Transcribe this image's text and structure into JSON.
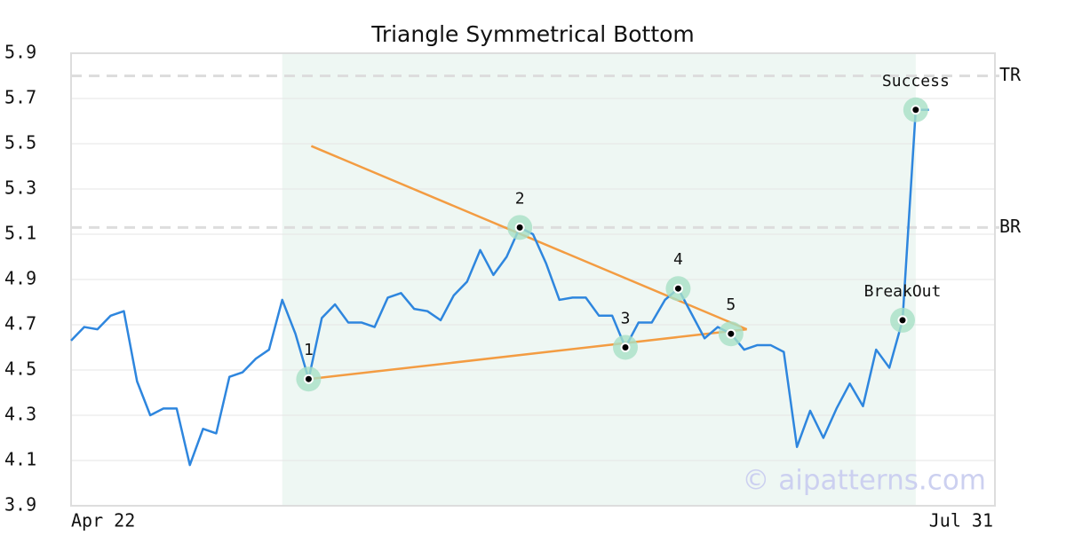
{
  "chart_data": {
    "type": "line",
    "title": "Triangle Symmetrical Bottom",
    "categories": [
      "Apr 22",
      null,
      null,
      null,
      null,
      null,
      null,
      null,
      null,
      null,
      null,
      null,
      null,
      null,
      null,
      null,
      null,
      null,
      null,
      null,
      null,
      null,
      null,
      null,
      null,
      null,
      null,
      null,
      null,
      null,
      null,
      null,
      null,
      null,
      null,
      null,
      null,
      null,
      null,
      null,
      null,
      null,
      null,
      null,
      null,
      null,
      null,
      null,
      null,
      null,
      null,
      null,
      null,
      null,
      null,
      null,
      null,
      null,
      null,
      null,
      null,
      null,
      null,
      null,
      null,
      null,
      null,
      null,
      null,
      null,
      "Jul 31"
    ],
    "series": [
      {
        "color": "#2e86de",
        "values": [
          4.63,
          4.69,
          4.68,
          4.74,
          4.76,
          4.45,
          4.3,
          4.33,
          4.33,
          4.08,
          4.24,
          4.22,
          4.47,
          4.49,
          4.55,
          4.59,
          4.81,
          4.66,
          4.46,
          4.73,
          4.79,
          4.71,
          4.71,
          4.69,
          4.82,
          4.84,
          4.77,
          4.76,
          4.72,
          4.83,
          4.89,
          5.03,
          4.92,
          5.0,
          5.13,
          5.1,
          4.97,
          4.81,
          4.82,
          4.82,
          4.74,
          4.74,
          4.6,
          4.71,
          4.71,
          4.81,
          4.86,
          4.75,
          4.64,
          4.69,
          4.66,
          4.59,
          4.61,
          4.61,
          4.58,
          4.16,
          4.32,
          4.2,
          4.33,
          4.44,
          4.34,
          4.59,
          4.51,
          4.72,
          5.65,
          5.65,
          null,
          null,
          null,
          null,
          null
        ]
      }
    ],
    "ylim": [
      3.9,
      5.9
    ],
    "yticks": [
      3.9,
      4.1,
      4.3,
      4.5,
      4.7,
      4.9,
      5.1,
      5.3,
      5.5,
      5.7,
      5.9
    ],
    "grid": true,
    "points": [
      {
        "label": "1",
        "index": 18
      },
      {
        "label": "2",
        "index": 34
      },
      {
        "label": "3",
        "index": 42
      },
      {
        "label": "4",
        "index": 46
      },
      {
        "label": "5",
        "index": 50
      },
      {
        "label": "BreakOut",
        "index": 63
      },
      {
        "label": "Success",
        "index": 64
      }
    ],
    "trendlines": [
      {
        "color": "#f39c42",
        "x": [
          18.2,
          51.2
        ],
        "y": [
          5.49,
          4.68
        ]
      },
      {
        "color": "#f39c42",
        "x": [
          18,
          51.2
        ],
        "y": [
          4.46,
          4.68
        ]
      }
    ],
    "hlines": [
      {
        "label": "TR",
        "value": 5.8
      },
      {
        "label": "BR",
        "value": 5.13
      }
    ],
    "shade": {
      "from": 16,
      "to": 64,
      "color": "#eef7f3"
    },
    "watermark": "© aipatterns.com"
  }
}
